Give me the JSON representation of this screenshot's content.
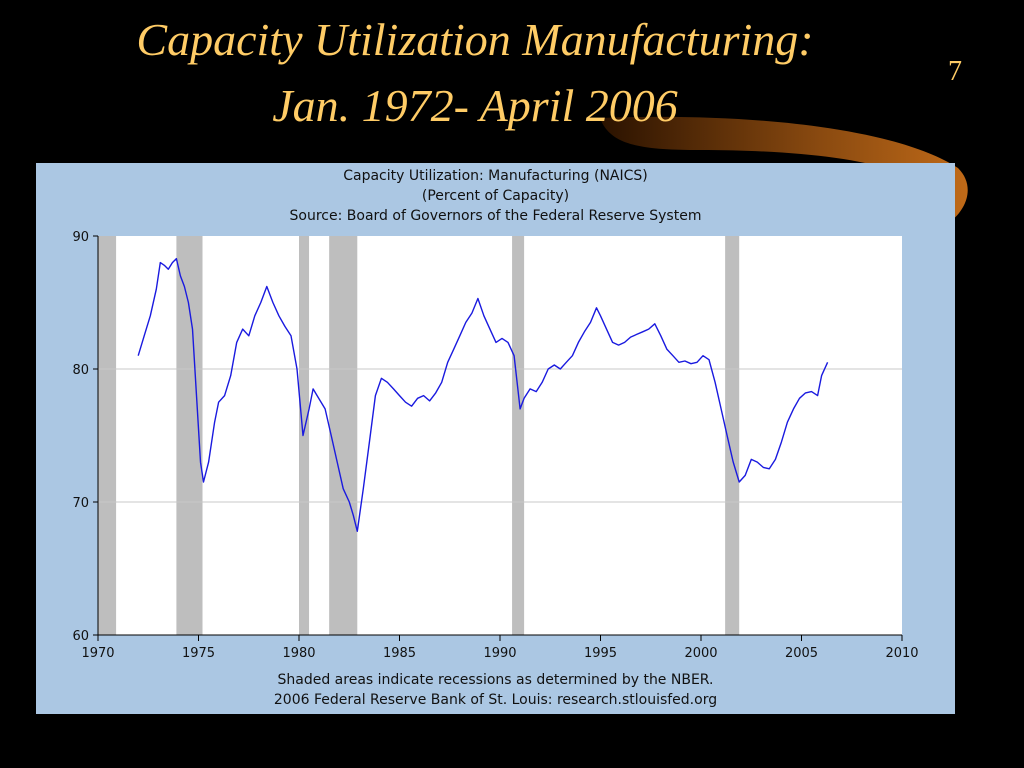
{
  "slide": {
    "title_line1": "Capacity Utilization Manufacturing:",
    "title_line2": "Jan. 1972- April 2006",
    "page_number": "7"
  },
  "chart_header": {
    "title": "Capacity Utilization: Manufacturing (NAICS)",
    "subtitle": "(Percent of Capacity)",
    "source": "Source: Board of Governors of the Federal Reserve System"
  },
  "chart_footer": {
    "note": "Shaded areas indicate recessions as determined by the NBER.",
    "credit": "2006 Federal Reserve Bank of St. Louis: research.stlouisfed.org"
  },
  "colors": {
    "background": "#000000",
    "title": "#ffcc66",
    "panel": "#abc7e3",
    "plot_bg": "#ffffff",
    "line": "#1a1adf",
    "recession": "#bebebe",
    "grid": "#c8c8c8"
  },
  "chart_data": {
    "type": "line",
    "title": "Capacity Utilization: Manufacturing (NAICS)",
    "subtitle": "(Percent of Capacity)",
    "xlim": [
      1970,
      2010
    ],
    "ylim": [
      60,
      90
    ],
    "xticks": [
      "1970",
      "1975",
      "1980",
      "1985",
      "1990",
      "1995",
      "2000",
      "2005",
      "2010"
    ],
    "yticks": [
      "60",
      "70",
      "80",
      "90"
    ],
    "grid": true,
    "recessions": [
      {
        "start": 1969.9,
        "end": 1970.9
      },
      {
        "start": 1973.9,
        "end": 1975.2
      },
      {
        "start": 1980.0,
        "end": 1980.5
      },
      {
        "start": 1981.5,
        "end": 1982.9
      },
      {
        "start": 1990.6,
        "end": 1991.2
      },
      {
        "start": 2001.2,
        "end": 2001.9
      }
    ],
    "series": [
      {
        "x": [
          1972.0,
          1972.3,
          1972.6,
          1972.9,
          1973.1,
          1973.3,
          1973.5,
          1973.7,
          1973.9,
          1974.1,
          1974.3,
          1974.5,
          1974.7,
          1974.9,
          1975.1,
          1975.25,
          1975.5,
          1975.8,
          1976.0,
          1976.3,
          1976.6,
          1976.9,
          1977.2,
          1977.5,
          1977.8,
          1978.1,
          1978.4,
          1978.7,
          1979.0,
          1979.3,
          1979.6,
          1979.9,
          1980.2,
          1980.5,
          1980.7,
          1980.9,
          1981.1,
          1981.3,
          1981.6,
          1981.9,
          1982.2,
          1982.5,
          1982.7,
          1982.9,
          1983.2,
          1983.5,
          1983.8,
          1984.1,
          1984.4,
          1984.7,
          1985.0,
          1985.3,
          1985.6,
          1985.9,
          1986.2,
          1986.5,
          1986.8,
          1987.1,
          1987.4,
          1987.7,
          1988.0,
          1988.3,
          1988.6,
          1988.9,
          1989.2,
          1989.5,
          1989.8,
          1990.1,
          1990.4,
          1990.7,
          1991.0,
          1991.2,
          1991.5,
          1991.8,
          1992.1,
          1992.4,
          1992.7,
          1993.0,
          1993.3,
          1993.6,
          1993.9,
          1994.2,
          1994.5,
          1994.8,
          1995.0,
          1995.3,
          1995.6,
          1995.9,
          1996.2,
          1996.5,
          1996.8,
          1997.1,
          1997.4,
          1997.7,
          1998.0,
          1998.3,
          1998.6,
          1998.9,
          1999.2,
          1999.5,
          1999.8,
          2000.1,
          2000.4,
          2000.7,
          2001.0,
          2001.3,
          2001.6,
          2001.9,
          2002.2,
          2002.5,
          2002.8,
          2003.1,
          2003.4,
          2003.7,
          2004.0,
          2004.3,
          2004.6,
          2004.9,
          2005.2,
          2005.5,
          2005.8,
          2006.0,
          2006.3
        ],
        "values": [
          81.0,
          82.5,
          84.0,
          86.0,
          88.0,
          87.8,
          87.5,
          88.0,
          88.3,
          87.0,
          86.2,
          85.0,
          83.0,
          78.0,
          73.0,
          71.5,
          73.0,
          76.0,
          77.5,
          78.0,
          79.5,
          82.0,
          83.0,
          82.5,
          84.0,
          85.0,
          86.2,
          85.0,
          84.0,
          83.2,
          82.5,
          80.0,
          75.0,
          77.0,
          78.5,
          78.0,
          77.5,
          77.0,
          75.0,
          73.0,
          71.0,
          70.0,
          69.0,
          67.8,
          71.0,
          74.5,
          78.0,
          79.3,
          79.0,
          78.5,
          78.0,
          77.5,
          77.2,
          77.8,
          78.0,
          77.6,
          78.2,
          79.0,
          80.5,
          81.5,
          82.5,
          83.5,
          84.2,
          85.3,
          84.0,
          83.0,
          82.0,
          82.3,
          82.0,
          81.0,
          77.0,
          77.8,
          78.5,
          78.3,
          79.0,
          80.0,
          80.3,
          80.0,
          80.5,
          81.0,
          82.0,
          82.8,
          83.5,
          84.6,
          84.0,
          83.0,
          82.0,
          81.8,
          82.0,
          82.4,
          82.6,
          82.8,
          83.0,
          83.4,
          82.5,
          81.5,
          81.0,
          80.5,
          80.6,
          80.4,
          80.5,
          81.0,
          80.7,
          79.0,
          77.0,
          75.0,
          73.0,
          71.5,
          72.0,
          73.2,
          73.0,
          72.6,
          72.5,
          73.2,
          74.5,
          76.0,
          77.0,
          77.8,
          78.2,
          78.3,
          78.0,
          79.5,
          80.5
        ]
      }
    ]
  }
}
